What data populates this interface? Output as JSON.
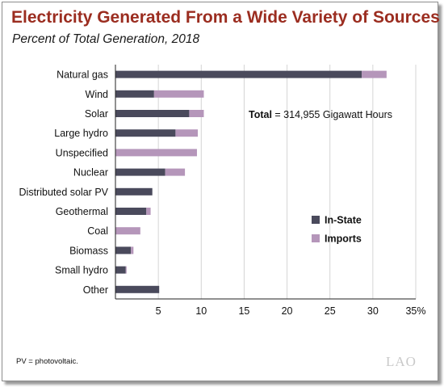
{
  "title": "Electricity Generated From a Wide Variety of Sources",
  "subtitle": "Percent of Total Generation, 2018",
  "annotation": {
    "bold": "Total",
    "rest": " = 314,955 Gigawatt Hours"
  },
  "footnote": "PV = photovoltaic.",
  "logo": "LAO",
  "chart_data": {
    "type": "bar",
    "orientation": "horizontal",
    "stacked": true,
    "categories": [
      "Natural gas",
      "Wind",
      "Solar",
      "Large hydro",
      "Unspecified",
      "Nuclear",
      "Distributed solar PV",
      "Geothermal",
      "Coal",
      "Biomass",
      "Small hydro",
      "Other"
    ],
    "series": [
      {
        "name": "In-State",
        "color": "#4a4a5c",
        "values": [
          28.7,
          4.5,
          8.6,
          7.0,
          0,
          5.8,
          4.3,
          3.6,
          0,
          1.8,
          1.2,
          5.1
        ]
      },
      {
        "name": "Imports",
        "color": "#b596ba",
        "values": [
          2.9,
          5.8,
          1.7,
          2.6,
          9.5,
          2.3,
          0,
          0.5,
          2.9,
          0.3,
          0.1,
          0
        ]
      }
    ],
    "xlim": [
      0,
      35
    ],
    "xticks": [
      5,
      10,
      15,
      20,
      25,
      30
    ],
    "xtick_last_label": "35%",
    "grid": "vertical",
    "legend": "right",
    "xlabel": "",
    "ylabel": ""
  }
}
